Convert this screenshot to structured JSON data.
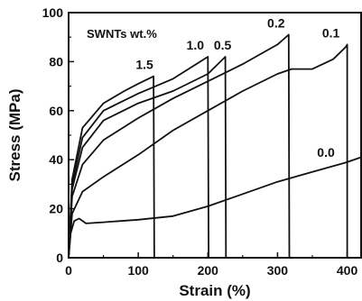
{
  "chart_data": {
    "type": "line",
    "title": "",
    "xlabel": "Strain (%)",
    "ylabel": "Stress (MPa)",
    "xlim": [
      0,
      420
    ],
    "ylim": [
      0,
      100
    ],
    "xticks": [
      0,
      100,
      200,
      300,
      400
    ],
    "yticks": [
      0,
      20,
      40,
      60,
      80,
      100
    ],
    "legend_title": "SWNTs wt.%",
    "grid": false,
    "series": [
      {
        "name": "0.0",
        "label": "0.0",
        "x": [
          0,
          3,
          8,
          15,
          25,
          50,
          100,
          150,
          200,
          250,
          300,
          350,
          400,
          420
        ],
        "y": [
          0,
          10,
          15,
          16,
          14,
          14.5,
          15.5,
          17,
          21,
          26,
          31,
          35,
          39,
          41
        ]
      },
      {
        "name": "0.1",
        "label": "0.1",
        "x": [
          0,
          5,
          20,
          50,
          100,
          150,
          200,
          250,
          300,
          320,
          350,
          380,
          398,
          400,
          400
        ],
        "y": [
          0,
          18,
          27,
          33,
          42,
          52,
          60,
          68,
          75,
          77,
          77,
          81,
          86,
          87,
          0
        ]
      },
      {
        "name": "0.2",
        "label": "0.2",
        "x": [
          0,
          5,
          20,
          50,
          100,
          150,
          200,
          250,
          300,
          316,
          317
        ],
        "y": [
          0,
          25,
          38,
          48,
          57,
          65,
          72,
          79,
          87,
          91,
          0
        ]
      },
      {
        "name": "0.5",
        "label": "0.5",
        "x": [
          0,
          5,
          20,
          50,
          100,
          150,
          200,
          225,
          226
        ],
        "y": [
          0,
          28,
          45,
          56,
          63,
          68,
          75,
          82,
          0
        ]
      },
      {
        "name": "1.0",
        "label": "1.0",
        "x": [
          0,
          5,
          20,
          50,
          100,
          150,
          200,
          201
        ],
        "y": [
          0,
          30,
          49,
          60,
          67,
          73,
          82,
          0
        ]
      },
      {
        "name": "1.5",
        "label": "1.5",
        "x": [
          0,
          5,
          20,
          50,
          80,
          100,
          122,
          123
        ],
        "y": [
          0,
          32,
          53,
          63,
          68,
          71,
          74,
          0
        ]
      }
    ]
  }
}
